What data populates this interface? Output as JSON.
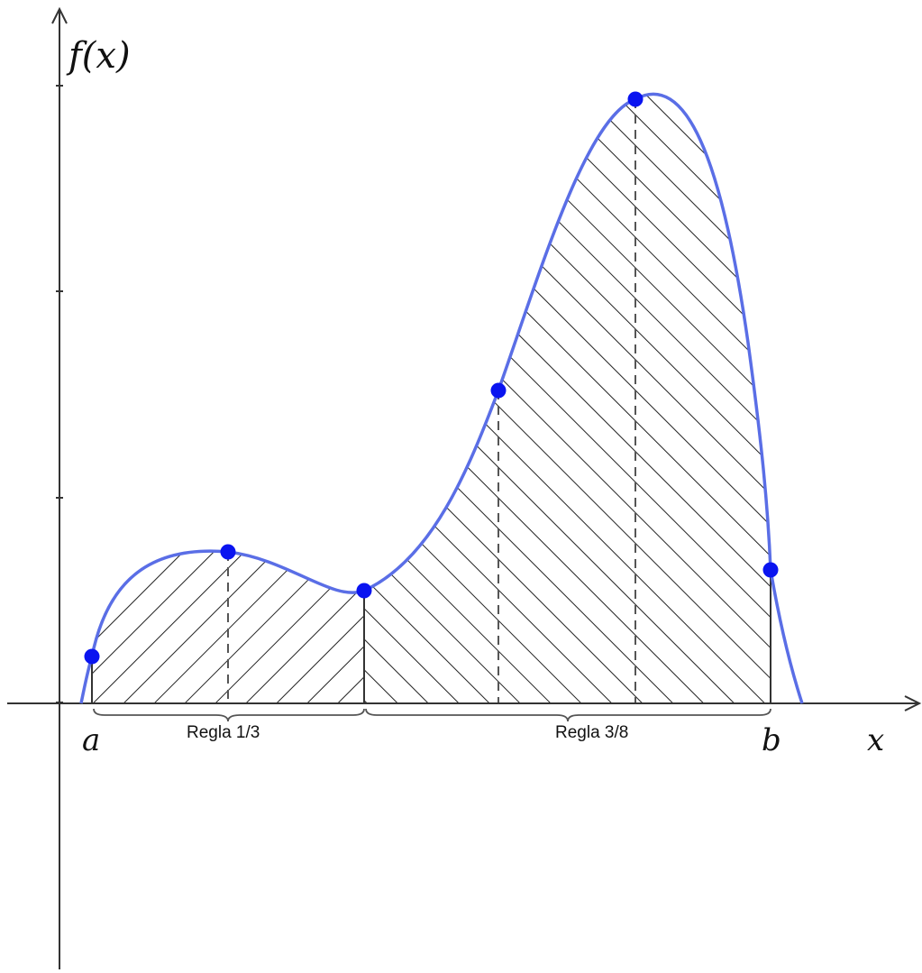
{
  "diagram": {
    "y_axis_label": "f(x)",
    "x_axis_label": "x",
    "lower_limit_label": "a",
    "upper_limit_label": "b",
    "rule_labels": [
      "Regla 1/3",
      "Regla 3/8"
    ],
    "colors": {
      "curve": "#5a6ee6",
      "points": "#0a14f0",
      "hatch": "#222222",
      "axes": "#333333"
    }
  }
}
